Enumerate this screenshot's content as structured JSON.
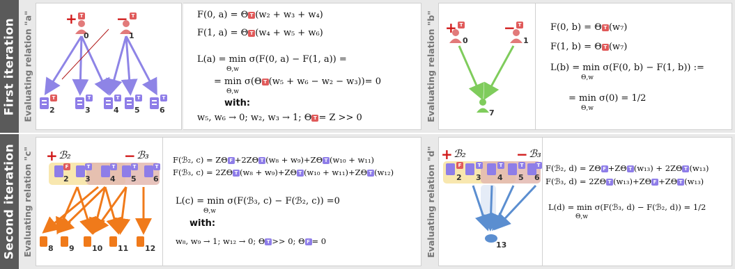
{
  "iterations": [
    {
      "label": "First iteration"
    },
    {
      "label": "Second iteration"
    }
  ],
  "panels": {
    "a": {
      "relation_label": "Evaluating relation \"a\"",
      "eq1": "F(0, a) = Θ",
      "eq1b": "(w₂ + w₃ + w₄)",
      "eq2": "F(1, a) = Θ",
      "eq2b": "(w₄ + w₅ + w₆)",
      "eq3": "L(a) = min σ(F(0, a) − F(1, a)) =",
      "eq4": "= min σ(Θ",
      "eq4b": "(w₅ + w₆ − w₂ − w₃))= 0",
      "minsub": "Θ,w",
      "with": "with:",
      "eq5": "w₅, w₆ → 0; w₂, w₃ → 1; Θ",
      "eq5b": "= Z >> 0",
      "top_nodes": [
        "0",
        "1"
      ],
      "bottom_nodes": [
        "2",
        "3",
        "4",
        "5",
        "6"
      ]
    },
    "b": {
      "relation_label": "Evaluating relation \"b\"",
      "eq1": "F(0, b) = Θ",
      "eq1b": "(w₇)",
      "eq2": "F(1, b) = Θ",
      "eq2b": "(w₇)",
      "eq3": "L(b) = min σ(F(0, b) − F(1, b)) :=",
      "eq4": "= min σ(0) = 1/2",
      "minsub": "Θ,w",
      "top_nodes": [
        "0",
        "1"
      ],
      "bottom_node": "7"
    },
    "c": {
      "relation_label": "Evaluating relation \"c\"",
      "set_pos": "ℬ₂",
      "set_neg": "ℬ₃",
      "eq1": "F(ℬ₂, c) = ZΘ",
      "eq1b": "+2ZΘ",
      "eq1c": "(w₈ + w₉)+ZΘ",
      "eq1d": "(w₁₀ + w₁₁)",
      "eq2": "F(ℬ₃, c) = 2ZΘ",
      "eq2b": "(w₈ + w₉)+ZΘ",
      "eq2c": "(w₁₀ + w₁₁)+ZΘ",
      "eq2d": "(w₁₂)",
      "eq3": "L(c) = min σ(F(ℬ₃, c) − F(ℬ₂, c)) =0",
      "minsub": "Θ,w",
      "with": "with:",
      "eq4": "w₈, w₉ → 1; w₁₂ → 0; Θ",
      "eq4b": ">> 0; Θ",
      "eq4c": "= 0",
      "top_nodes": [
        "2",
        "3",
        "4",
        "5",
        "6"
      ],
      "bottom_nodes": [
        "8",
        "9",
        "10",
        "11",
        "12"
      ]
    },
    "d": {
      "relation_label": "Evaluating relation \"d\"",
      "set_pos": "ℬ₂",
      "set_neg": "ℬ₃",
      "eq1": "F(ℬ₂, d) = ZΘ",
      "eq1b": "+ZΘ",
      "eq1c": "(w₁₃) + 2ZΘ",
      "eq1d": "(w₁₃)",
      "eq2": "F(ℬ₃, d) = 2ZΘ",
      "eq2b": "(w₁₃)+ZΘ",
      "eq2c": "+ZΘ",
      "eq2d": "(w₁₃)",
      "eq3": "L(d) = min σ(F(ℬ₃, d) − F(ℬ₂, d)) = 1/2",
      "minsub": "Θ,w",
      "top_nodes": [
        "2",
        "3",
        "4",
        "5",
        "6"
      ],
      "bottom_node": "13"
    }
  },
  "badges": {
    "T": "T",
    "F": "F"
  },
  "colors": {
    "purple_edge": "#8e84e6",
    "green_edge": "#7fcc5c",
    "orange_edge": "#f07a1a",
    "blue_edge": "#5b8ed0",
    "red_sign": "#d01818",
    "person_red": "#e27a7a",
    "doc_purple": "#8e7de8",
    "can_orange": "#f07a1a",
    "band": "#5a5a5a"
  },
  "signs": {
    "plus": "+",
    "minus": "−"
  }
}
